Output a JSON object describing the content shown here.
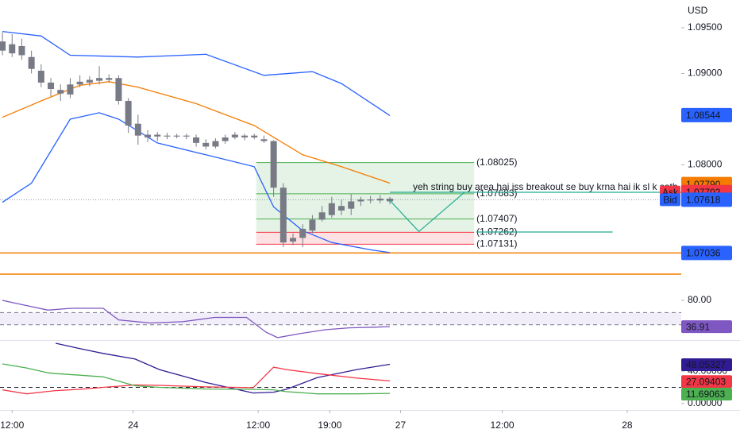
{
  "chart_data": [
    {
      "type": "candlestick",
      "currency": "USD",
      "x": [
        0,
        1,
        2,
        3,
        4,
        5,
        6,
        7,
        8,
        9,
        10,
        11,
        12,
        13,
        14,
        15,
        16,
        17,
        18,
        19,
        20,
        21,
        22,
        23,
        24,
        25,
        26,
        27,
        28,
        29,
        30,
        31,
        32,
        33,
        34,
        35,
        36,
        37,
        38,
        39,
        40
      ],
      "open": [
        1.0935,
        1.0922,
        1.093,
        1.0918,
        1.0903,
        1.089,
        1.0882,
        1.0877,
        1.0888,
        1.089,
        1.0892,
        1.0895,
        1.0895,
        1.087,
        1.0845,
        1.0833,
        1.0831,
        1.0832,
        1.0831,
        1.0832,
        1.083,
        1.0824,
        1.082,
        1.0826,
        1.083,
        1.0832,
        1.083,
        1.0828,
        1.0826,
        1.0775,
        1.0716,
        1.072,
        1.0728,
        1.074,
        1.0745,
        1.075,
        1.0752,
        1.076,
        1.0762,
        1.0761,
        1.0763
      ],
      "high": [
        1.0945,
        1.0943,
        1.0938,
        1.0925,
        1.091,
        1.0895,
        1.0888,
        1.0895,
        1.0898,
        1.0897,
        1.0908,
        1.0899,
        1.0898,
        1.0873,
        1.0855,
        1.0838,
        1.0836,
        1.0835,
        1.0834,
        1.0834,
        1.0833,
        1.0828,
        1.0829,
        1.0833,
        1.0836,
        1.0834,
        1.0834,
        1.0832,
        1.0827,
        1.078,
        1.0725,
        1.0735,
        1.0745,
        1.0755,
        1.0765,
        1.0762,
        1.0768,
        1.0765,
        1.0766,
        1.0767,
        1.0765
      ],
      "low": [
        1.092,
        1.0918,
        1.0915,
        1.09,
        1.0885,
        1.0875,
        1.087,
        1.0873,
        1.0885,
        1.0886,
        1.0888,
        1.089,
        1.0866,
        1.0835,
        1.0822,
        1.0825,
        1.0826,
        1.0828,
        1.0829,
        1.0828,
        1.082,
        1.0817,
        1.0818,
        1.0823,
        1.0828,
        1.0827,
        1.0828,
        1.0824,
        1.0765,
        1.071,
        1.0712,
        1.071,
        1.0725,
        1.0738,
        1.0742,
        1.0745,
        1.0745,
        1.0755,
        1.0758,
        1.0758,
        1.0757
      ],
      "close": [
        1.0925,
        1.0932,
        1.092,
        1.0905,
        1.089,
        1.0883,
        1.0878,
        1.0888,
        1.0891,
        1.0893,
        1.0895,
        1.0893,
        1.087,
        1.0843,
        1.0832,
        1.083,
        1.0833,
        1.0831,
        1.0832,
        1.0831,
        1.0824,
        1.082,
        1.0826,
        1.083,
        1.0833,
        1.083,
        1.0832,
        1.0826,
        1.0775,
        1.0715,
        1.072,
        1.073,
        1.074,
        1.0748,
        1.0758,
        1.0755,
        1.076,
        1.0762,
        1.0761,
        1.0763,
        1.076
      ],
      "color": "#787b86",
      "overlays": [
        {
          "color": "#2962ff",
          "x": [
            0,
            4,
            7,
            14,
            21,
            27,
            32,
            35,
            40
          ],
          "values": [
            1.0946,
            1.0941,
            1.092,
            1.0918,
            1.0921,
            1.0898,
            1.0902,
            1.0889,
            1.0854
          ]
        },
        {
          "color": "#f57c00",
          "x": [
            0,
            4,
            8,
            11,
            14,
            20,
            26,
            31,
            35,
            40
          ],
          "values": [
            1.0852,
            1.087,
            1.0887,
            1.0891,
            1.0885,
            1.0867,
            1.0843,
            1.0811,
            1.0798,
            1.078
          ]
        },
        {
          "color": "#2962ff",
          "x": [
            0,
            3,
            7,
            10,
            12,
            16,
            21,
            26,
            28,
            31,
            34,
            38,
            40
          ],
          "values": [
            1.0759,
            1.078,
            1.085,
            1.0857,
            1.085,
            1.0824,
            1.0811,
            1.0798,
            1.0754,
            1.0728,
            1.0715,
            1.0707,
            1.0704
          ]
        }
      ],
      "hlines": [
        {
          "value": 1.07036,
          "color": "#f57c00"
        }
      ],
      "box": {
        "x": [
          26.2,
          48.7
        ],
        "levels": [
          {
            "value": 1.08025,
            "label": "(1.08025)",
            "color": "#4caf50"
          },
          {
            "value": 1.07683,
            "label": "(1.07683)",
            "color": "#4caf50"
          },
          {
            "value": 1.07407,
            "label": "(1.07407)",
            "color": "#4caf50"
          },
          {
            "value": 1.07262,
            "label": "(1.07262)",
            "color": "#f23645"
          },
          {
            "value": 1.07131,
            "label": "(1.07131)",
            "color": "#f23645"
          }
        ],
        "note": "yeh string buy area hai iss breakout se buy krna hai ik sl k sath"
      },
      "drawings": [
        {
          "color": "#22ab94",
          "x": [
            40,
            43,
            47.7
          ],
          "values": [
            1.0761,
            1.0727,
            1.077
          ]
        },
        {
          "color": "#22ab94",
          "x": [
            40,
            70.08
          ],
          "values": [
            1.077,
            1.077
          ]
        },
        {
          "color": "#22ab94",
          "x": [
            48.9,
            63
          ],
          "values": [
            1.07265,
            1.07265
          ]
        }
      ],
      "price_tags": [
        {
          "value": 1.08544,
          "label": "1.08544",
          "color": "#2962ff"
        },
        {
          "value": 1.0779,
          "label": "1.07790",
          "color": "#f57c00"
        },
        {
          "value": 1.07702,
          "label": "1.07702",
          "side_label": "Ask",
          "color": "#f23645"
        },
        {
          "value": 1.07618,
          "label": "1.07618",
          "side_label": "Bid",
          "color": "#2962ff"
        },
        {
          "value": 1.07036,
          "label": "1.07036",
          "color": "#2962ff"
        }
      ],
      "xlim": [
        -0.25,
        70.08
      ],
      "ylim": [
        1.06804,
        1.09804
      ],
      "yticks": [
        {
          "value": 1.095,
          "label": "1.09500"
        },
        {
          "value": 1.09,
          "label": "1.09000"
        },
        {
          "value": 1.08,
          "label": "1.08000"
        }
      ]
    },
    {
      "type": "line",
      "x": [
        0,
        1.4,
        4.7,
        7.1,
        10.4,
        12,
        15.3,
        18.6,
        21.9,
        25.2,
        27.2,
        28.4,
        30.9,
        33.4,
        35.8,
        38.3,
        40
      ],
      "series": [
        {
          "color": "#7e57c2",
          "values": [
            80,
            75,
            64,
            67,
            67,
            48,
            43,
            45,
            52,
            52,
            28,
            19,
            26,
            32,
            35,
            36,
            37
          ],
          "tag": 36.91
        }
      ],
      "band": [
        40,
        60
      ],
      "xlim": [
        -0.25,
        70.08
      ],
      "ylim": [
        15,
        119
      ],
      "yticks": [
        {
          "value": 80,
          "label": "80.00"
        }
      ]
    },
    {
      "type": "line",
      "x": [
        0,
        2.5,
        4.7,
        5.5,
        8,
        10.4,
        13.7,
        16.2,
        21,
        25.9,
        28,
        29.3,
        32.5,
        36.6,
        40
      ],
      "series": [
        {
          "color": "#311b92",
          "values": [
            null,
            null,
            null,
            74.5,
            68,
            62,
            55,
            42,
            26,
            13,
            14,
            17.6,
            32,
            42,
            48.5
          ],
          "tag": 48.05327
        },
        {
          "color": "#f23645",
          "values": [
            17,
            12,
            15,
            16,
            17.6,
            20,
            23,
            22.5,
            20.6,
            19.6,
            45,
            42,
            37,
            31.4,
            28
          ],
          "tag": 27.09403
        },
        {
          "color": "#4caf50",
          "values": [
            49,
            44,
            38,
            37,
            35,
            33,
            22,
            20,
            18,
            17.6,
            17,
            14.7,
            12,
            12,
            12.5
          ],
          "tag": 11.69063
        }
      ],
      "level": 20,
      "xlim": [
        -0.25,
        70.08
      ],
      "ylim": [
        -7,
        76.5
      ],
      "yticks": [
        {
          "value": 40,
          "label": "40.00000"
        },
        {
          "value": 0,
          "label": "0.00000"
        }
      ],
      "xticks": [
        {
          "value": 1,
          "label": "12:00"
        },
        {
          "value": 13.5,
          "label": "24"
        },
        {
          "value": 26.4,
          "label": "12:00"
        },
        {
          "value": 33.8,
          "label": "19:00"
        },
        {
          "value": 41.1,
          "label": "27"
        },
        {
          "value": 51.6,
          "label": "12:00"
        },
        {
          "value": 64.5,
          "label": "28"
        }
      ]
    }
  ]
}
